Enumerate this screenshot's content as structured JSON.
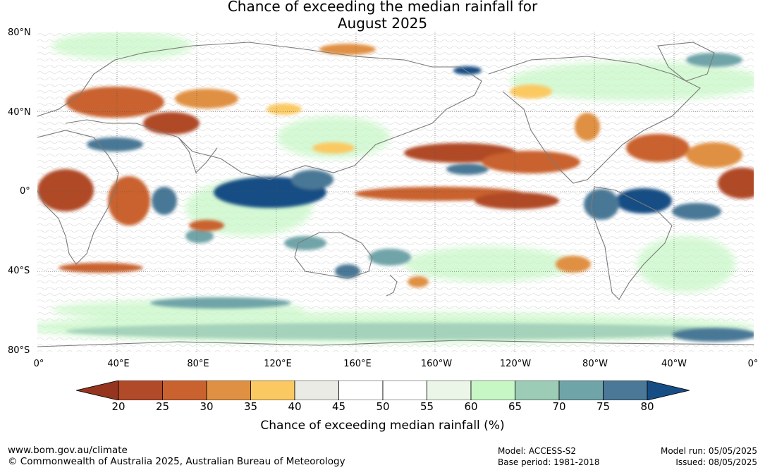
{
  "title_line1": "Chance of exceeding the median rainfall for",
  "title_line2": "August 2025",
  "lat_labels": [
    "80°N",
    "40°N",
    "0°",
    "40°S",
    "80°S"
  ],
  "lon_labels": [
    "0°",
    "40°E",
    "80°E",
    "120°E",
    "160°E",
    "160°W",
    "120°W",
    "80°W",
    "40°W",
    "0°"
  ],
  "colorbar": {
    "ticks": [
      "20",
      "25",
      "30",
      "35",
      "40",
      "45",
      "50",
      "55",
      "60",
      "65",
      "70",
      "75",
      "80"
    ],
    "colors": [
      "#b04a28",
      "#c9622e",
      "#e09042",
      "#fbc962",
      "#ebebe6",
      "#ffffff",
      "#ffffff",
      "#ebf6e9",
      "#c8f7c6",
      "#9ccbb6",
      "#6fa4a8",
      "#4a7896"
    ],
    "low_color": "#953520",
    "high_color": "#164d84",
    "label": "Chance of exceeding median rainfall (%)"
  },
  "footer": {
    "website": "www.bom.gov.au/climate",
    "copyright": "© Commonwealth of Australia 2025, Australian Bureau of Meteorology",
    "model": "Model: ACCESS-S2",
    "base_period": "Base period: 1981-2018",
    "model_run": "Model run: 05/05/2025",
    "issued": "Issued: 08/05/2025"
  }
}
